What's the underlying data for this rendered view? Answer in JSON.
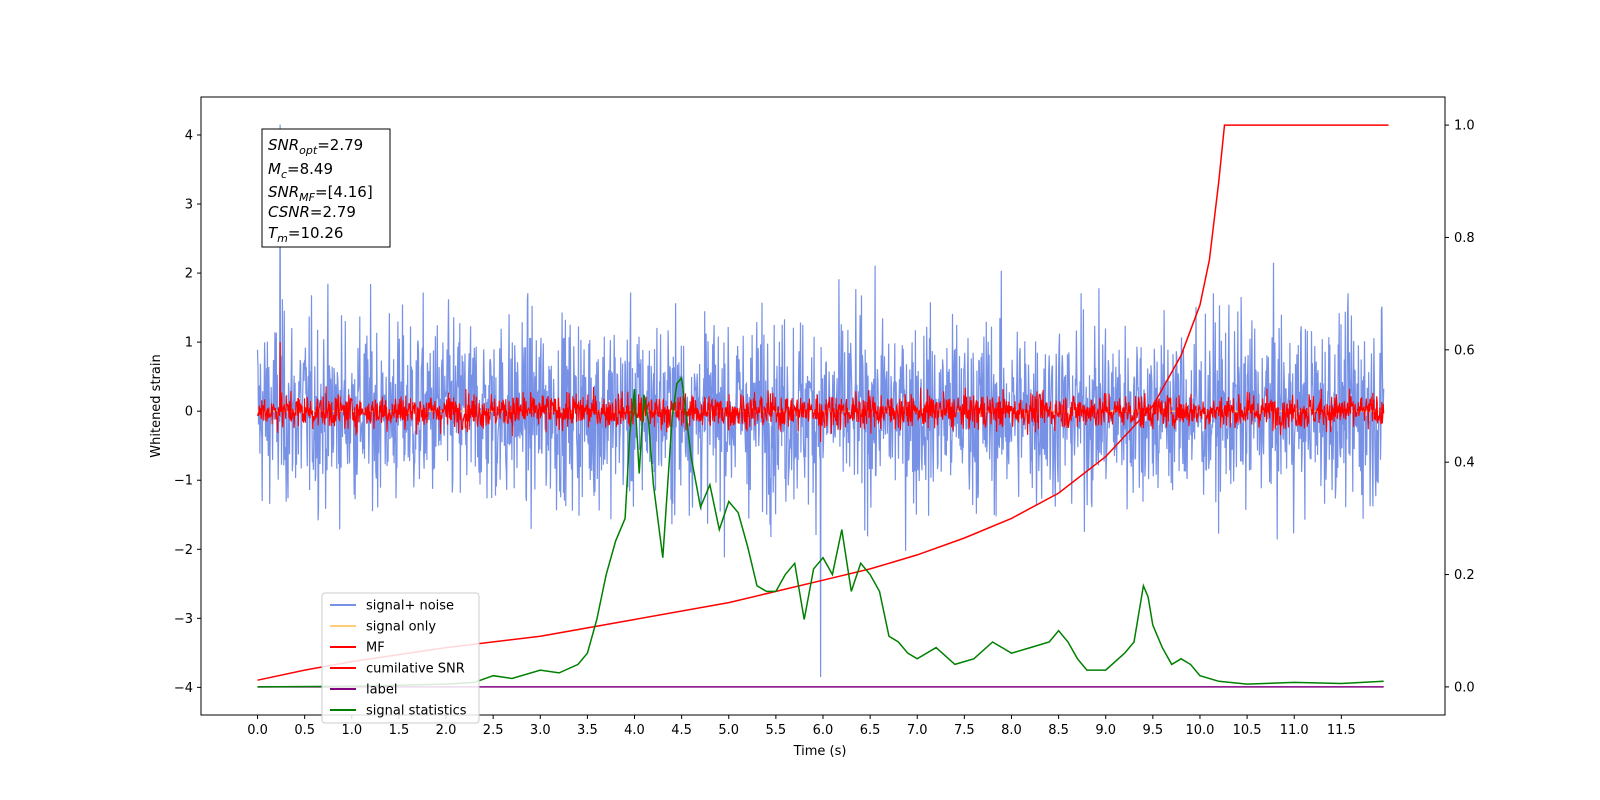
{
  "chart_data": {
    "type": "line",
    "xlabel": "Time (s)",
    "ylabel": "Whitened strain",
    "xlim": [
      -0.6,
      12.6
    ],
    "ylim": [
      -4.4,
      4.55
    ],
    "y2lim": [
      -0.05,
      1.05
    ],
    "xticks": [
      "0.0",
      "0.5",
      "1.0",
      "1.5",
      "2.0",
      "2.5",
      "3.0",
      "3.5",
      "4.0",
      "4.5",
      "5.0",
      "5.5",
      "6.0",
      "6.5",
      "7.0",
      "7.5",
      "8.0",
      "8.5",
      "9.0",
      "9.5",
      "10.0",
      "10.5",
      "11.0",
      "11.5"
    ],
    "yticks": [
      "−4",
      "−3",
      "−2",
      "−1",
      "0",
      "1",
      "2",
      "3",
      "4"
    ],
    "y2ticks": [
      "0.0",
      "0.2",
      "0.4",
      "0.6",
      "0.8",
      "1.0"
    ],
    "annotation": {
      "snr_opt": {
        "base": "SNR",
        "sub": "opt",
        "value": "=2.79"
      },
      "mc": {
        "base": "M",
        "sub": "c",
        "value": "=8.49"
      },
      "snr_mf": {
        "base": "SNR",
        "sub": "MF",
        "value": "=[4.16]"
      },
      "csnr": {
        "base": "CSNR",
        "sub": "",
        "value": "=2.79"
      },
      "tm": {
        "base": "T",
        "sub": "m",
        "value": "=10.26"
      }
    },
    "series": [
      {
        "name": "signal+ noise",
        "color": "#7791e6",
        "axis": "left",
        "kind": "noise",
        "amplitude": 1.05,
        "extremes": [
          4.15,
          -3.85
        ]
      },
      {
        "name": "signal only",
        "color": "#ffcc77",
        "axis": "left",
        "kind": "flat",
        "value": 0
      },
      {
        "name": "MF",
        "color": "#ff0000",
        "axis": "left",
        "kind": "noise",
        "amplitude": 0.2,
        "extremes": [
          1.0,
          -0.45
        ]
      },
      {
        "name": "cumilative SNR",
        "color": "#ff0000",
        "axis": "right",
        "x": [
          0.0,
          0.5,
          1.0,
          2.0,
          3.0,
          4.0,
          5.0,
          6.0,
          6.5,
          7.0,
          7.5,
          8.0,
          8.5,
          9.0,
          9.5,
          9.8,
          10.0,
          10.1,
          10.2,
          10.26,
          11.5,
          12.0
        ],
        "values": [
          0.012,
          0.03,
          0.045,
          0.07,
          0.09,
          0.12,
          0.15,
          0.19,
          0.21,
          0.235,
          0.265,
          0.3,
          0.345,
          0.41,
          0.5,
          0.59,
          0.68,
          0.76,
          0.9,
          1.0,
          1.0,
          1.0
        ]
      },
      {
        "name": "label",
        "color": "#800080",
        "axis": "right",
        "x": [
          0.0,
          11.95
        ],
        "values": [
          0.0,
          0.0
        ]
      },
      {
        "name": "signal statistics",
        "color": "#008000",
        "axis": "right",
        "x": [
          0.0,
          1.0,
          2.0,
          2.3,
          2.5,
          2.7,
          3.0,
          3.2,
          3.4,
          3.5,
          3.6,
          3.7,
          3.8,
          3.9,
          3.95,
          4.0,
          4.05,
          4.1,
          4.15,
          4.2,
          4.3,
          4.4,
          4.45,
          4.5,
          4.6,
          4.7,
          4.8,
          4.9,
          5.0,
          5.1,
          5.2,
          5.3,
          5.4,
          5.5,
          5.6,
          5.7,
          5.8,
          5.9,
          6.0,
          6.1,
          6.2,
          6.3,
          6.4,
          6.5,
          6.6,
          6.7,
          6.8,
          6.9,
          7.0,
          7.2,
          7.4,
          7.6,
          7.8,
          8.0,
          8.2,
          8.4,
          8.5,
          8.6,
          8.7,
          8.8,
          9.0,
          9.2,
          9.3,
          9.4,
          9.45,
          9.5,
          9.6,
          9.7,
          9.8,
          9.9,
          10.0,
          10.2,
          10.5,
          11.0,
          11.5,
          11.95
        ],
        "values": [
          0.0,
          0.001,
          0.005,
          0.008,
          0.02,
          0.015,
          0.03,
          0.025,
          0.04,
          0.06,
          0.12,
          0.2,
          0.26,
          0.3,
          0.45,
          0.53,
          0.38,
          0.52,
          0.47,
          0.36,
          0.23,
          0.48,
          0.54,
          0.55,
          0.41,
          0.32,
          0.36,
          0.28,
          0.33,
          0.31,
          0.25,
          0.18,
          0.17,
          0.17,
          0.2,
          0.22,
          0.12,
          0.21,
          0.23,
          0.2,
          0.28,
          0.17,
          0.22,
          0.2,
          0.17,
          0.09,
          0.08,
          0.06,
          0.05,
          0.07,
          0.04,
          0.05,
          0.08,
          0.06,
          0.07,
          0.08,
          0.1,
          0.08,
          0.05,
          0.03,
          0.03,
          0.06,
          0.08,
          0.18,
          0.16,
          0.11,
          0.07,
          0.04,
          0.05,
          0.04,
          0.02,
          0.01,
          0.005,
          0.008,
          0.006,
          0.01
        ]
      }
    ],
    "legend_position": "lower-left",
    "grid": false
  }
}
